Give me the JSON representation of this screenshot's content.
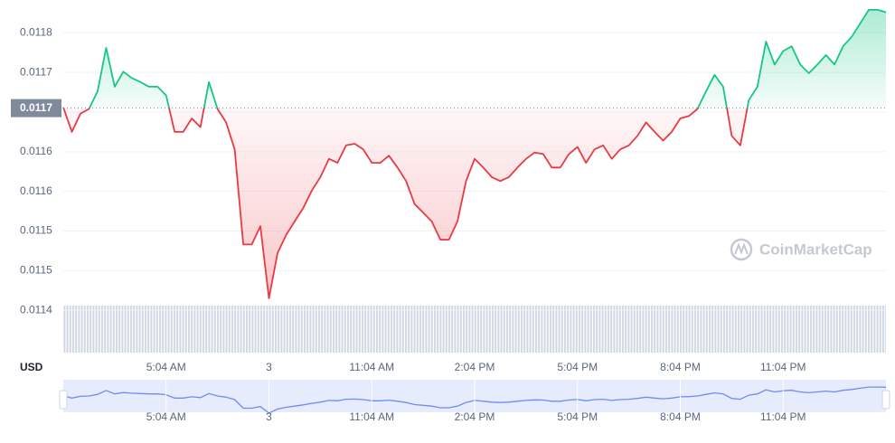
{
  "chart_data": {
    "type": "line",
    "currency": "USD",
    "watermark": "CoinMarketCap",
    "categories": [
      null,
      null,
      null,
      null,
      null,
      null,
      null,
      null,
      null,
      null,
      null,
      null,
      "5:04 AM",
      null,
      null,
      null,
      null,
      null,
      null,
      null,
      null,
      null,
      null,
      null,
      "3",
      null,
      null,
      null,
      null,
      null,
      null,
      null,
      null,
      null,
      null,
      null,
      "11:04 AM",
      null,
      null,
      null,
      null,
      null,
      null,
      null,
      null,
      null,
      null,
      null,
      "2:04 PM",
      null,
      null,
      null,
      null,
      null,
      null,
      null,
      null,
      null,
      null,
      null,
      "5:04 PM",
      null,
      null,
      null,
      null,
      null,
      null,
      null,
      null,
      null,
      null,
      null,
      "8:04 PM",
      null,
      null,
      null,
      null,
      null,
      null,
      null,
      null,
      null,
      null,
      null,
      "11:04 PM",
      null,
      null,
      null,
      null,
      null,
      null,
      null,
      null,
      null,
      null,
      null,
      null
    ],
    "values": [
      0.011706,
      0.011675,
      0.011698,
      0.011704,
      0.011726,
      0.011781,
      0.011732,
      0.011751,
      0.011743,
      0.011738,
      0.011732,
      0.011732,
      0.011721,
      0.011675,
      0.011675,
      0.011692,
      0.011681,
      0.011738,
      0.011704,
      0.011687,
      0.011653,
      0.011533,
      0.011533,
      0.011556,
      0.011465,
      0.011522,
      0.011545,
      0.011562,
      0.011579,
      0.011601,
      0.011618,
      0.011641,
      0.011636,
      0.011658,
      0.01166,
      0.011653,
      0.011636,
      0.011636,
      0.011645,
      0.01163,
      0.011613,
      0.011584,
      0.011573,
      0.011562,
      0.011539,
      0.011539,
      0.011562,
      0.011613,
      0.011641,
      0.01163,
      0.011618,
      0.011613,
      0.011618,
      0.01163,
      0.011641,
      0.011649,
      0.011647,
      0.01163,
      0.01163,
      0.011647,
      0.011656,
      0.011636,
      0.011653,
      0.011658,
      0.011641,
      0.011653,
      0.011658,
      0.01167,
      0.011687,
      0.011675,
      0.011664,
      0.011675,
      0.011692,
      0.011695,
      0.011704,
      0.011726,
      0.011747,
      0.011732,
      0.01167,
      0.011658,
      0.011715,
      0.011732,
      0.011789,
      0.01176,
      0.011777,
      0.011783,
      0.01176,
      0.011749,
      0.01176,
      0.011772,
      0.01176,
      0.011783,
      0.011795,
      0.011812,
      0.011829,
      0.011829,
      0.011826
    ],
    "up_color": "#16c784",
    "down_color": "#ea3943",
    "reference": {
      "value": 0.011705,
      "label": "0.0117"
    },
    "ylim": [
      0.0114,
      0.01183
    ],
    "yticks": [
      {
        "value": 0.0118,
        "label": "0.0118"
      },
      {
        "value": 0.01175,
        "label": "0.0117"
      },
      {
        "value": 0.0117,
        "label": "0.0117"
      },
      {
        "value": 0.01165,
        "label": "0.0116"
      },
      {
        "value": 0.0116,
        "label": "0.0116"
      },
      {
        "value": 0.01155,
        "label": "0.0115"
      },
      {
        "value": 0.0115,
        "label": "0.0115"
      },
      {
        "value": 0.01145,
        "label": "0.0114"
      }
    ],
    "grid": true
  }
}
